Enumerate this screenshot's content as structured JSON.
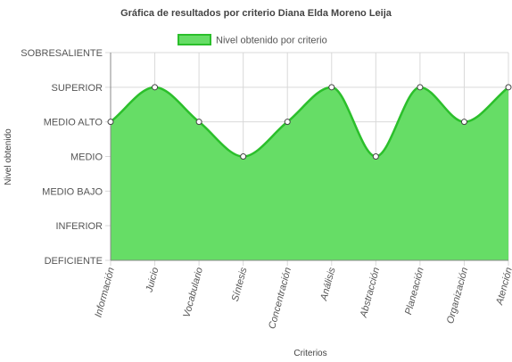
{
  "chart_data": {
    "type": "area",
    "title": "Gráfica de resultados por criterio Diana Elda Moreno Leija",
    "xlabel": "Criterios",
    "ylabel": "Nivel obtenido",
    "categories": [
      "Información",
      "Juicio",
      "Vocabulario",
      "Síntesis",
      "Concentración",
      "Análisis",
      "Abstracción",
      "Planeación",
      "Organización",
      "Atención"
    ],
    "y_levels": [
      "DEFICIENTE",
      "INFERIOR",
      "MEDIO BAJO",
      "MEDIO",
      "MEDIO ALTO",
      "SUPERIOR",
      "SOBRESALIENTE"
    ],
    "ylim": [
      0,
      6
    ],
    "series": [
      {
        "name": "Nivel obtenido por criterio",
        "values": [
          4,
          5,
          4,
          3,
          4,
          5,
          3,
          5,
          4,
          5
        ]
      }
    ],
    "legend": "top",
    "grid": true,
    "colors": {
      "fill": "#66dd66",
      "line": "#2bbf2b",
      "grid": "#d9d9d9",
      "axis": "#888888",
      "point_fill": "#ffffff",
      "point_stroke": "#444444"
    }
  }
}
